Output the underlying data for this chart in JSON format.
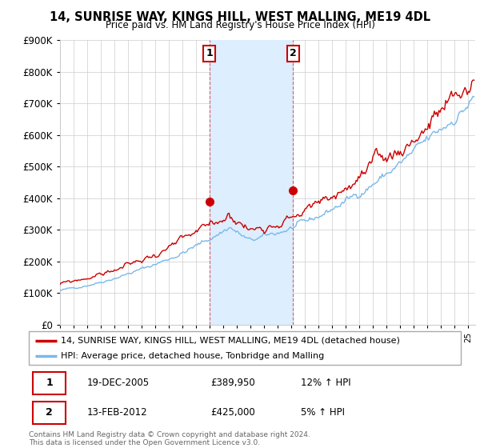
{
  "title": "14, SUNRISE WAY, KINGS HILL, WEST MALLING, ME19 4DL",
  "subtitle": "Price paid vs. HM Land Registry's House Price Index (HPI)",
  "legend_line1": "14, SUNRISE WAY, KINGS HILL, WEST MALLING, ME19 4DL (detached house)",
  "legend_line2": "HPI: Average price, detached house, Tonbridge and Malling",
  "annotation1_date": "19-DEC-2005",
  "annotation1_price": "£389,950",
  "annotation1_hpi": "12% ↑ HPI",
  "annotation2_date": "13-FEB-2012",
  "annotation2_price": "£425,000",
  "annotation2_hpi": "5% ↑ HPI",
  "footer": "Contains HM Land Registry data © Crown copyright and database right 2024.\nThis data is licensed under the Open Government Licence v3.0.",
  "hpi_color": "#7ab8e8",
  "price_color": "#cc0000",
  "span_color": "#ddeeff",
  "annotation_box_color": "#cc0000",
  "sale1_year": 2005.97,
  "sale1_value": 389950,
  "sale2_year": 2012.12,
  "sale2_value": 425000,
  "ylim": [
    0,
    900000
  ],
  "xlim_start": 1995.0,
  "xlim_end": 2025.5
}
